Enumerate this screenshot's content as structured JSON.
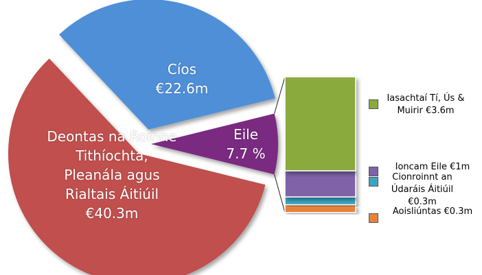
{
  "chart_data": {
    "type": "pie-of-bar",
    "slices": [
      {
        "name": "Cíos",
        "value": 22.6,
        "value_label": "€22.6m",
        "color": "#4f8fd8"
      },
      {
        "name": "Deontas na Roinne Tithíochta, Pleanála agus Rialtais Áitiúil",
        "value": 40.3,
        "value_label": "€40.3m",
        "color": "#c0504d"
      }
    ],
    "other": {
      "name": "Eile",
      "percent": 7.7,
      "value_label": "7.7 %",
      "color": "#7a2a80"
    },
    "bar": [
      {
        "name": "Iasachtaí Tí, Ús & Muirir",
        "value": 3.6,
        "value_label": "€3.6m",
        "color": "#8aaa3c"
      },
      {
        "name": "Ioncam Eile",
        "value": 1,
        "value_label": "€1m",
        "color": "#7f62a8"
      },
      {
        "name": "Cionroinnt an Údaráis Áitiúil",
        "value": 0.3,
        "value_label": "€0.3m",
        "color": "#3aa5c0"
      },
      {
        "name": "Aoisliúntas",
        "value": 0.3,
        "value_label": "€0.3m",
        "color": "#e8823a"
      }
    ]
  }
}
